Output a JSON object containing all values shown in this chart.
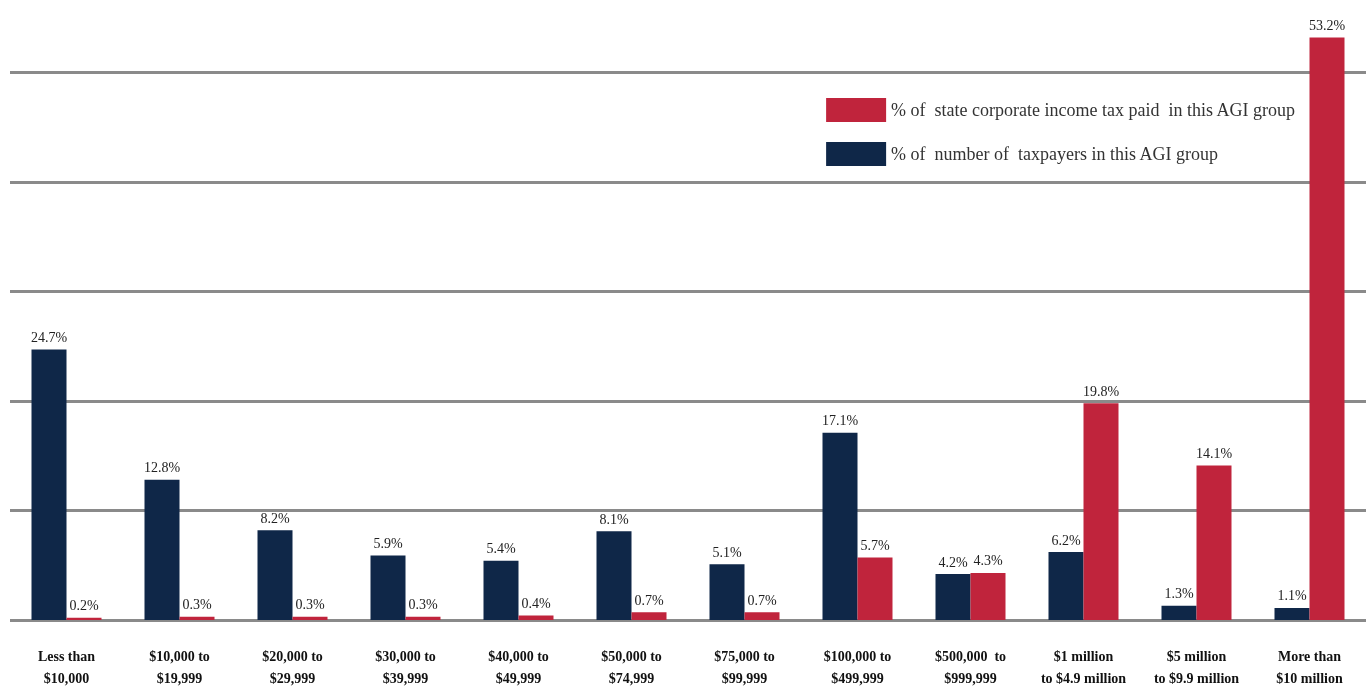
{
  "chart_data": {
    "type": "bar",
    "categories": [
      "Less than\n$10,000",
      "$10,000 to\n$19,999",
      "$20,000 to\n$29,999",
      "$30,000 to\n$39,999",
      "$40,000 to\n$49,999",
      "$50,000 to\n$74,999",
      "$75,000 to\n$99,999",
      "$100,000 to\n$499,999",
      "$500,000  to\n$999,999",
      "$1 million\nto $4.9 million",
      "$5 million\nto $9.9 million",
      "More than\n$10 million"
    ],
    "series": [
      {
        "name": "% of  number of  taxpayers in this AGI group",
        "color": "#0f2748",
        "values": [
          24.7,
          12.8,
          8.2,
          5.9,
          5.4,
          8.1,
          5.1,
          17.1,
          4.2,
          6.2,
          1.3,
          1.1
        ],
        "value_labels": [
          "24.7%",
          "12.8%",
          "8.2%",
          "5.9%",
          "5.4%",
          "8.1%",
          "5.1%",
          "17.1%",
          "4.2%",
          "6.2%",
          "1.3%",
          "1.1%"
        ]
      },
      {
        "name": "% of  state corporate income tax paid  in this AGI group",
        "color": "#c0243c",
        "values": [
          0.2,
          0.3,
          0.3,
          0.3,
          0.4,
          0.7,
          0.7,
          5.7,
          4.3,
          19.8,
          14.1,
          53.2
        ],
        "value_labels": [
          "0.2%",
          "0.3%",
          "0.3%",
          "0.3%",
          "0.4%",
          "0.7%",
          "0.7%",
          "5.7%",
          "4.3%",
          "19.8%",
          "14.1%",
          "53.2%"
        ]
      }
    ],
    "grid": "y",
    "legend": "top right",
    "tick_labels": "x"
  }
}
